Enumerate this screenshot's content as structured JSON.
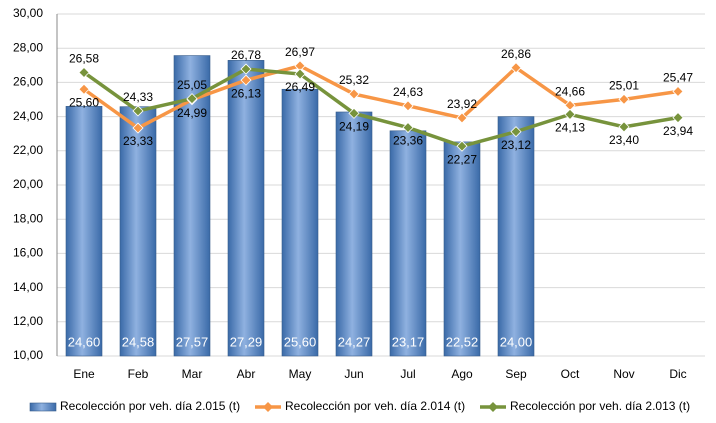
{
  "chart_data": {
    "type": "bar_line",
    "categories": [
      "Ene",
      "Feb",
      "Mar",
      "Abr",
      "May",
      "Jun",
      "Jul",
      "Ago",
      "Sep",
      "Oct",
      "Nov",
      "Dic"
    ],
    "series": [
      {
        "name": "Recolección por veh. día 2.015 (t)",
        "type": "bar",
        "color": "#4f81bd",
        "values": [
          24.6,
          24.58,
          27.57,
          27.29,
          25.6,
          24.27,
          23.17,
          22.52,
          24.0,
          null,
          null,
          null
        ],
        "value_labels": [
          "24,60",
          "24,58",
          "27,57",
          "27,29",
          "25,60",
          "24,27",
          "23,17",
          "22,52",
          "24,00",
          null,
          null,
          null
        ]
      },
      {
        "name": "Recolección por veh. día 2.014 (t)",
        "type": "line",
        "color": "#f79646",
        "values": [
          25.6,
          23.33,
          24.99,
          26.13,
          26.97,
          25.32,
          24.63,
          23.92,
          26.86,
          24.66,
          25.01,
          25.47
        ],
        "value_labels": [
          "25,60",
          "23,33",
          "24,99",
          "26,13",
          "26,97",
          "25,32",
          "24,63",
          "23,92",
          "26,86",
          "24,66",
          "25,01",
          "25,47"
        ]
      },
      {
        "name": "Recolección por veh. día 2.013 (t)",
        "type": "line",
        "color": "#77933c",
        "values": [
          26.58,
          24.33,
          25.05,
          26.78,
          26.49,
          24.19,
          23.36,
          22.27,
          23.12,
          24.13,
          23.4,
          23.94
        ],
        "value_labels": [
          "26,58",
          "24,33",
          "25,05",
          "26,78",
          "26,49",
          "24,19",
          "23,36",
          "22,27",
          "23,12",
          "24,13",
          "23,40",
          "23,94"
        ]
      }
    ],
    "ylim": [
      10,
      30
    ],
    "yticks": [
      {
        "value": 10,
        "label": "10,00"
      },
      {
        "value": 12,
        "label": "12,00"
      },
      {
        "value": 14,
        "label": "14,00"
      },
      {
        "value": 16,
        "label": "16,00"
      },
      {
        "value": 18,
        "label": "18,00"
      },
      {
        "value": 20,
        "label": "20,00"
      },
      {
        "value": 22,
        "label": "22,00"
      },
      {
        "value": 24,
        "label": "24,00"
      },
      {
        "value": 26,
        "label": "26,00"
      },
      {
        "value": 28,
        "label": "28,00"
      },
      {
        "value": 30,
        "label": "30,00"
      }
    ],
    "grid": true,
    "legend": "bottom"
  }
}
